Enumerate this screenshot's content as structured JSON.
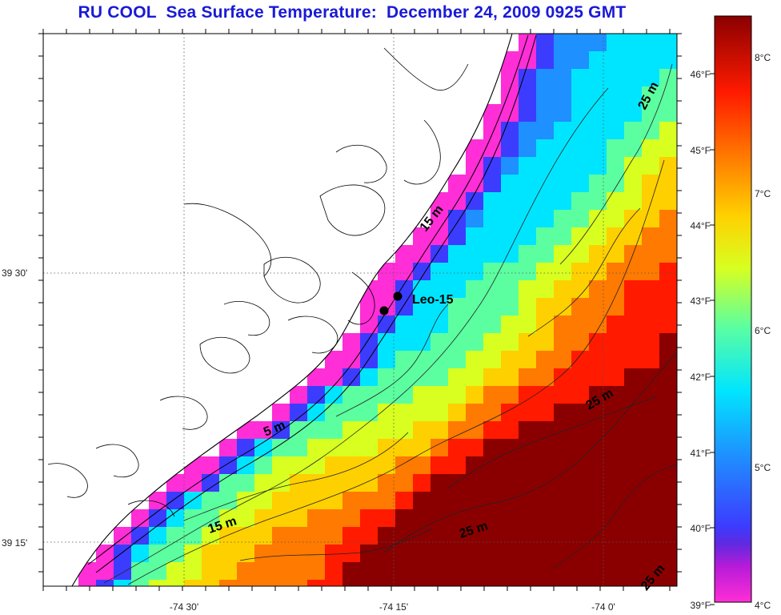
{
  "title": "RU COOL  Sea Surface Temperature:  December 24, 2009 0925 GMT",
  "map": {
    "lon_ticks": [
      "-74 30'",
      "-74 15'",
      "-74 0'"
    ],
    "lat_ticks": [
      "39 30'",
      "39 15'"
    ],
    "site": {
      "label": "Leo-15"
    },
    "contour_labels": [
      "5 m",
      "15 m",
      "15 m",
      "25 m",
      "25 m",
      "25 m",
      "25 m"
    ]
  },
  "colorbar": {
    "fahrenheit_labels": [
      "46°F",
      "45°F",
      "44°F",
      "43°F",
      "42°F",
      "41°F",
      "40°F",
      "39°F"
    ],
    "celsius_labels": [
      "8°C",
      "7°C",
      "6°C",
      "5°C",
      "4°C"
    ],
    "range_celsius": [
      4,
      8.6
    ],
    "colors": [
      "#ff2ed6",
      "#3c3cff",
      "#1e90ff",
      "#00e5ff",
      "#5cffa0",
      "#d8ff20",
      "#ffd000",
      "#ff7a00",
      "#ff1a00",
      "#8a0000"
    ]
  },
  "colors": {
    "title": "#1a1ad6",
    "land": "#ffffff",
    "coast": "#000000"
  }
}
